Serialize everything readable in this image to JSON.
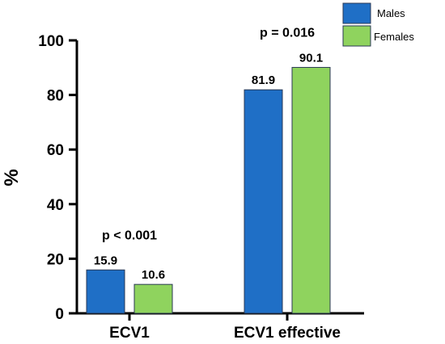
{
  "chart_data": {
    "type": "bar",
    "categories": [
      "ECV1",
      "ECV1 effective"
    ],
    "series": [
      {
        "name": "Males",
        "values": [
          15.9,
          81.9
        ],
        "color": "#1f6fc6"
      },
      {
        "name": "Females",
        "values": [
          10.6,
          90.1
        ],
        "color": "#8fd35e"
      }
    ],
    "data_labels": [
      [
        "15.9",
        "81.9"
      ],
      [
        "10.6",
        "90.1"
      ]
    ],
    "annotations": [
      "p < 0.001",
      "p = 0.016"
    ],
    "ylabel": "%",
    "xlabel": "",
    "ylim": [
      0,
      100
    ],
    "yticks": [
      0,
      20,
      40,
      60,
      80,
      100
    ],
    "legend_position": "top-right",
    "grid": false
  }
}
